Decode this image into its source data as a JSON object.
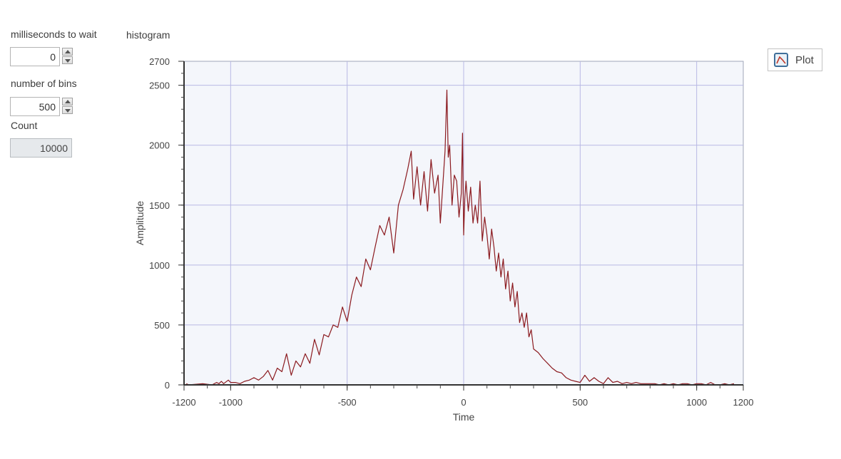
{
  "controls": {
    "ms_to_wait": {
      "label": "milliseconds to wait",
      "value": "0"
    },
    "number_of_bins": {
      "label": "number of bins",
      "value": "500"
    },
    "count": {
      "label": "Count",
      "value": "10000"
    }
  },
  "plot_button": {
    "label": "Plot",
    "icon": "line-chart-icon"
  },
  "chart_data": {
    "type": "line",
    "title": "histogram",
    "xlabel": "Time",
    "ylabel": "Amplitude",
    "xlim": [
      -1200,
      1200
    ],
    "ylim": [
      0,
      2700
    ],
    "xticks": [
      -1200,
      -1000,
      -500,
      0,
      500,
      1000,
      1200
    ],
    "yticks": [
      0,
      500,
      1000,
      1500,
      2000,
      2500,
      2700
    ],
    "grid": true,
    "colors": {
      "line": "#8b1a1f",
      "plot_bg": "#f4f6fb",
      "grid": "#b8b8e4"
    },
    "series": [
      {
        "x": [
          -1190,
          -1180,
          -1120,
          -1080,
          -1060,
          -1050,
          -1040,
          -1030,
          -1010,
          -1000,
          -980,
          -960,
          -940,
          -920,
          -900,
          -880,
          -860,
          -840,
          -820,
          -800,
          -780,
          -760,
          -740,
          -720,
          -700,
          -680,
          -660,
          -640,
          -620,
          -600,
          -580,
          -560,
          -540,
          -520,
          -500,
          -480,
          -460,
          -440,
          -420,
          -400,
          -380,
          -360,
          -340,
          -320,
          -300,
          -280,
          -260,
          -240,
          -225,
          -215,
          -200,
          -185,
          -170,
          -155,
          -140,
          -125,
          -110,
          -100,
          -90,
          -80,
          -72,
          -66,
          -60,
          -50,
          -40,
          -30,
          -20,
          -10,
          -5,
          0,
          5,
          10,
          20,
          30,
          40,
          50,
          60,
          70,
          80,
          90,
          100,
          110,
          120,
          130,
          140,
          150,
          160,
          170,
          180,
          190,
          200,
          210,
          220,
          230,
          240,
          250,
          260,
          270,
          280,
          290,
          300,
          320,
          340,
          360,
          380,
          400,
          420,
          440,
          460,
          480,
          500,
          520,
          540,
          560,
          580,
          600,
          620,
          640,
          660,
          680,
          700,
          720,
          740,
          760,
          780,
          800,
          820,
          840,
          860,
          880,
          900,
          920,
          940,
          960,
          980,
          1000,
          1020,
          1040,
          1060,
          1080,
          1100,
          1120,
          1140,
          1160
        ],
        "y": [
          10,
          0,
          10,
          0,
          20,
          10,
          30,
          10,
          40,
          20,
          20,
          10,
          30,
          40,
          60,
          40,
          70,
          120,
          40,
          140,
          110,
          260,
          80,
          200,
          150,
          260,
          180,
          380,
          250,
          420,
          400,
          500,
          480,
          650,
          530,
          750,
          900,
          820,
          1050,
          960,
          1150,
          1330,
          1250,
          1400,
          1100,
          1500,
          1630,
          1800,
          1950,
          1550,
          1820,
          1500,
          1780,
          1450,
          1880,
          1600,
          1750,
          1350,
          1650,
          1950,
          2460,
          1900,
          2000,
          1500,
          1750,
          1700,
          1400,
          1600,
          2100,
          1250,
          1550,
          1700,
          1450,
          1650,
          1350,
          1500,
          1350,
          1700,
          1200,
          1400,
          1250,
          1050,
          1300,
          1150,
          950,
          1100,
          900,
          1050,
          800,
          950,
          700,
          850,
          650,
          780,
          520,
          600,
          480,
          600,
          400,
          460,
          300,
          270,
          220,
          180,
          140,
          110,
          100,
          60,
          40,
          30,
          20,
          80,
          30,
          60,
          30,
          10,
          60,
          20,
          30,
          10,
          20,
          10,
          20,
          10,
          10,
          10,
          10,
          0,
          10,
          0,
          10,
          0,
          10,
          10,
          0,
          10,
          10,
          0,
          20,
          0,
          0,
          10,
          0,
          10
        ]
      }
    ]
  }
}
